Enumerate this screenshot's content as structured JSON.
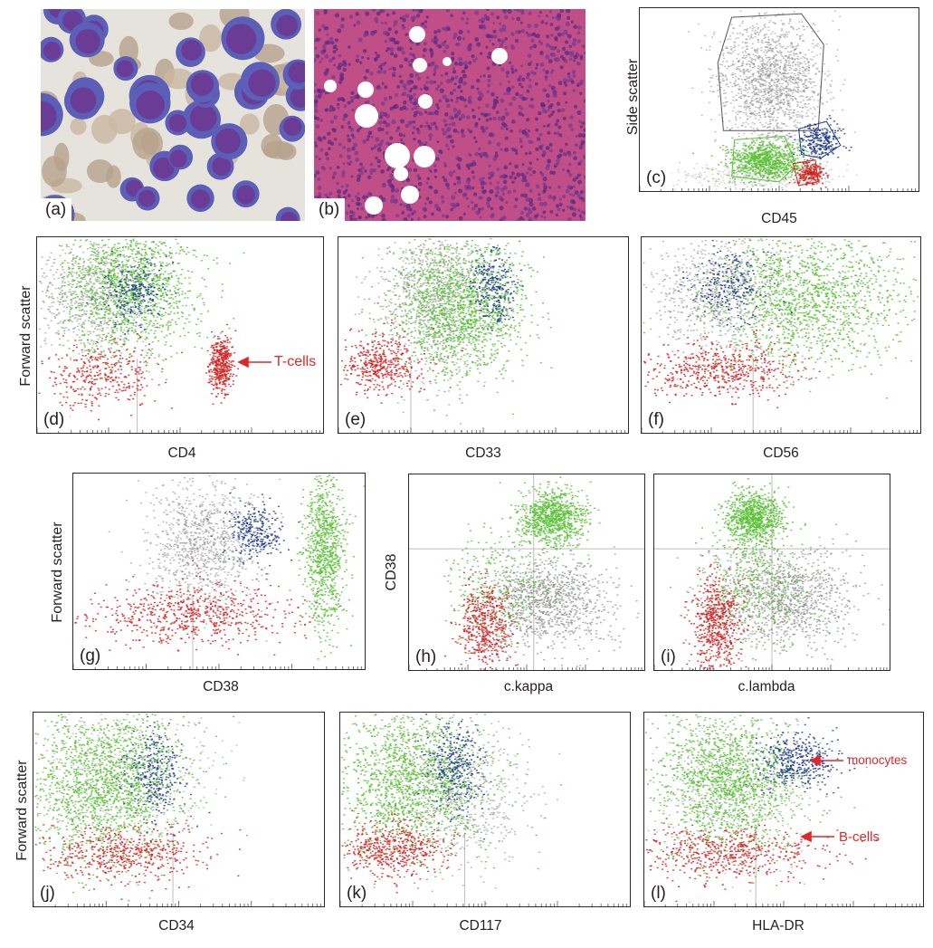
{
  "figure": {
    "photos": [
      {
        "id": "a",
        "tag": "(a)",
        "stain": "blue-purple cells on light background"
      },
      {
        "id": "b",
        "tag": "(b)",
        "stain": "pink H&E tissue with white vacuoles"
      }
    ],
    "colors": {
      "gray": "#8c8c8c",
      "green": "#5bc236",
      "blue": "#1d3a8c",
      "red": "#d62020",
      "annotation": "#e0282a"
    },
    "panels": [
      {
        "id": "c",
        "tag": "(c)",
        "xlabel": "CD45",
        "ylabel": "Side scatter"
      },
      {
        "id": "d",
        "tag": "(d)",
        "xlabel": "CD4",
        "ylabel": "Forward scatter"
      },
      {
        "id": "e",
        "tag": "(e)",
        "xlabel": "CD33",
        "ylabel": ""
      },
      {
        "id": "f",
        "tag": "(f)",
        "xlabel": "CD56",
        "ylabel": ""
      },
      {
        "id": "g",
        "tag": "(g)",
        "xlabel": "CD38",
        "ylabel": "Forward scatter"
      },
      {
        "id": "h",
        "tag": "(h)",
        "xlabel": "c.kappa",
        "ylabel": "CD38"
      },
      {
        "id": "i",
        "tag": "(i)",
        "xlabel": "c.lambda",
        "ylabel": ""
      },
      {
        "id": "j",
        "tag": "(j)",
        "xlabel": "CD34",
        "ylabel": "Forward scatter"
      },
      {
        "id": "k",
        "tag": "(k)",
        "xlabel": "CD117",
        "ylabel": ""
      },
      {
        "id": "l",
        "tag": "(l)",
        "xlabel": "HLA-DR",
        "ylabel": ""
      }
    ],
    "annotations": {
      "t_cells": "T-cells",
      "monocytes": "monocytes",
      "b_cells": "B-cells"
    }
  }
}
